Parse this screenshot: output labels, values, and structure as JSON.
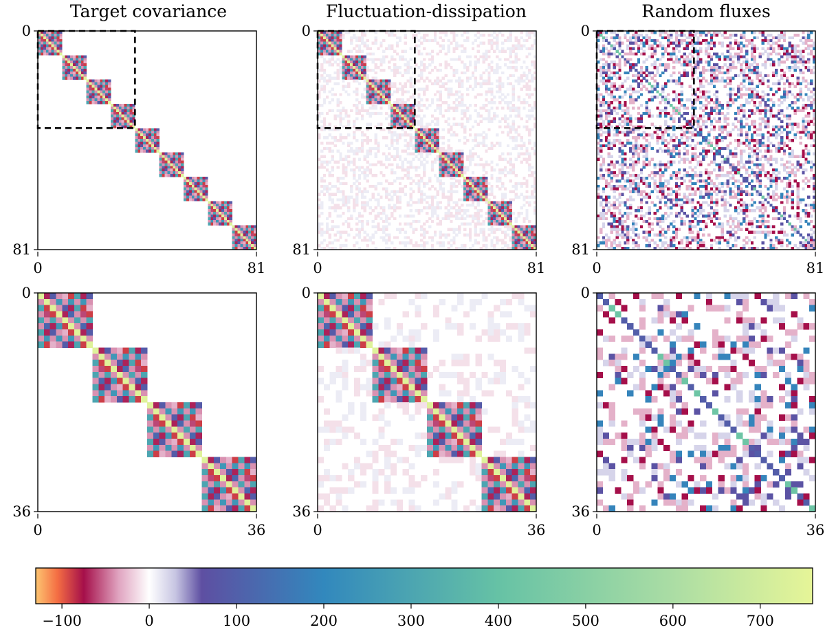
{
  "figure": {
    "panel_titles": [
      "Target covariance",
      "Fluctuation-dissipation",
      "Random fluxes"
    ]
  },
  "chart_data": [
    {
      "type": "heatmap",
      "panel": "top-left",
      "title": "Target covariance",
      "size": 81,
      "tick_labels": [
        "0",
        "81"
      ],
      "pattern": "block-diagonal",
      "block_size": 9,
      "block_count": 9,
      "highlight_box": {
        "from": 0,
        "to": 36,
        "style": "dashed"
      }
    },
    {
      "type": "heatmap",
      "panel": "top-middle",
      "title": "Fluctuation-dissipation",
      "size": 81,
      "tick_labels": [
        "0",
        "81"
      ],
      "pattern": "block-diagonal-with-noise",
      "block_size": 9,
      "block_count": 9,
      "highlight_box": {
        "from": 0,
        "to": 36,
        "style": "dashed"
      }
    },
    {
      "type": "heatmap",
      "panel": "top-right",
      "title": "Random fluxes",
      "size": 81,
      "tick_labels": [
        "0",
        "81"
      ],
      "pattern": "sparse-scattered-with-diagonal",
      "highlight_box": {
        "from": 0,
        "to": 36,
        "style": "dashed"
      }
    },
    {
      "type": "heatmap",
      "panel": "bottom-left",
      "size": 36,
      "tick_labels": [
        "0",
        "36"
      ],
      "pattern": "block-diagonal",
      "block_size": 9,
      "block_count": 4
    },
    {
      "type": "heatmap",
      "panel": "bottom-middle",
      "size": 36,
      "tick_labels": [
        "0",
        "36"
      ],
      "pattern": "block-diagonal-with-noise",
      "block_size": 9,
      "block_count": 4
    },
    {
      "type": "heatmap",
      "panel": "bottom-right",
      "size": 36,
      "tick_labels": [
        "0",
        "36"
      ],
      "pattern": "sparse-scattered-with-diagonal"
    }
  ],
  "colorbar": {
    "range": [
      -130,
      760
    ],
    "ticks": [
      -100,
      0,
      100,
      200,
      300,
      400,
      500,
      600,
      700
    ],
    "tick_labels": [
      "−100",
      "0",
      "100",
      "200",
      "300",
      "400",
      "500",
      "600",
      "700"
    ],
    "colormap": [
      {
        "value": -130,
        "color": "#fdc571"
      },
      {
        "value": -105,
        "color": "#f46d43"
      },
      {
        "value": -75,
        "color": "#a50f4a"
      },
      {
        "value": -35,
        "color": "#e0a4c0"
      },
      {
        "value": 0,
        "color": "#ffffff"
      },
      {
        "value": 30,
        "color": "#c7c5e2"
      },
      {
        "value": 60,
        "color": "#5e4fa2"
      },
      {
        "value": 200,
        "color": "#3288bd"
      },
      {
        "value": 400,
        "color": "#66c2a5"
      },
      {
        "value": 600,
        "color": "#abdda4"
      },
      {
        "value": 760,
        "color": "#e6f598"
      }
    ]
  }
}
